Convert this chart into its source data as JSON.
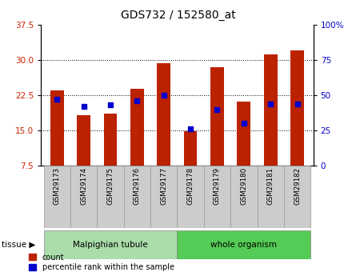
{
  "title": "GDS732 / 152580_at",
  "samples": [
    "GSM29173",
    "GSM29174",
    "GSM29175",
    "GSM29176",
    "GSM29177",
    "GSM29178",
    "GSM29179",
    "GSM29180",
    "GSM29181",
    "GSM29182"
  ],
  "count_values": [
    23.5,
    18.2,
    18.5,
    23.8,
    29.3,
    14.8,
    28.5,
    21.2,
    31.2,
    32.0
  ],
  "percentile_values": [
    47,
    42,
    43,
    46,
    50,
    26,
    40,
    30,
    44,
    44
  ],
  "ylim_left": [
    7.5,
    37.5
  ],
  "ylim_right": [
    0,
    100
  ],
  "yticks_left": [
    7.5,
    15.0,
    22.5,
    30.0,
    37.5
  ],
  "yticks_right": [
    0,
    25,
    50,
    75,
    100
  ],
  "bar_color": "#bb2200",
  "dot_color": "#0000cc",
  "tissue_groups": [
    {
      "label": "Malpighian tubule",
      "samples": [
        0,
        1,
        2,
        3,
        4
      ],
      "color": "#aaddaa"
    },
    {
      "label": "whole organism",
      "samples": [
        5,
        6,
        7,
        8,
        9
      ],
      "color": "#55cc55"
    }
  ],
  "bar_width": 0.5,
  "legend_count_label": "count",
  "legend_percentile_label": "percentile rank within the sample",
  "tissue_label": "tissue",
  "plot_bg_color": "#ffffff",
  "fig_bg_color": "#ffffff",
  "tick_label_color_left": "#cc2200",
  "tick_label_color_right": "#0000cc",
  "xtick_bg_color": "#cccccc",
  "xtick_border_color": "#999999"
}
